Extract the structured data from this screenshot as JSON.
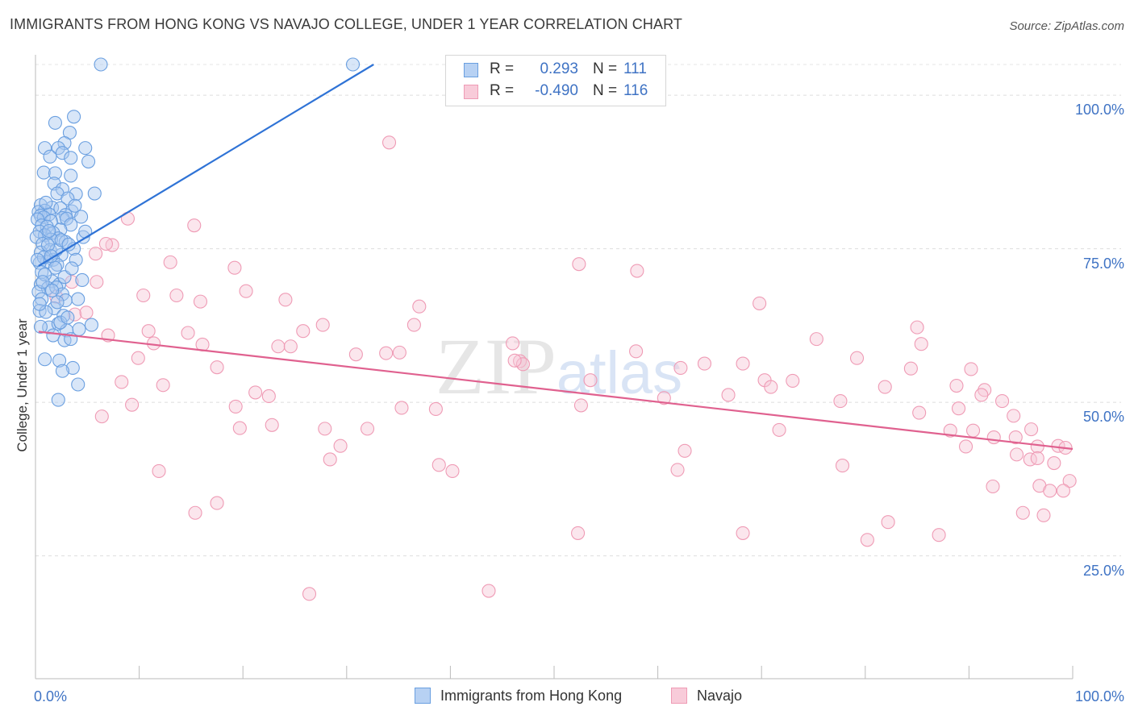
{
  "chart_data": {
    "type": "scatter",
    "title": "IMMIGRANTS FROM HONG KONG VS NAVAJO COLLEGE, UNDER 1 YEAR CORRELATION CHART",
    "source": "Source: ZipAtlas.com",
    "xlabel": "",
    "ylabel": "College, Under 1 year",
    "xlim": [
      0,
      100
    ],
    "ylim": [
      5,
      105
    ],
    "x_tick_labels": {
      "left": "0.0%",
      "right": "100.0%"
    },
    "y_ticks": [
      {
        "value": 100,
        "label": "100.0%"
      },
      {
        "value": 75,
        "label": "75.0%"
      },
      {
        "value": 50,
        "label": "50.0%"
      },
      {
        "value": 25,
        "label": "25.0%"
      }
    ],
    "grid": true,
    "watermark": "ZIPatlas",
    "stats": [
      {
        "series": "Immigrants from Hong Kong",
        "r_label": "R =",
        "r_value": "0.293",
        "n_label": "N =",
        "n_value": "111"
      },
      {
        "series": "Navajo",
        "r_label": "R =",
        "r_value": "-0.490",
        "n_label": "N =",
        "n_value": "116"
      }
    ],
    "series": [
      {
        "name": "Immigrants from Hong Kong",
        "color": "#6a9fe0",
        "fill": "#a9c8f0",
        "line_color": "#2f73d6",
        "trend": {
          "x": [
            0.3,
            32.6
          ],
          "y": [
            72.2,
            105
          ]
        },
        "points": [
          [
            6.3,
            105
          ],
          [
            30.6,
            105
          ],
          [
            3.7,
            96.5
          ],
          [
            1.9,
            95.5
          ],
          [
            3.3,
            93.9
          ],
          [
            2.8,
            92.2
          ],
          [
            0.9,
            91.4
          ],
          [
            2.2,
            91.4
          ],
          [
            4.8,
            91.4
          ],
          [
            2.6,
            90.6
          ],
          [
            1.4,
            90.0
          ],
          [
            3.4,
            89.8
          ],
          [
            5.1,
            89.2
          ],
          [
            0.8,
            87.4
          ],
          [
            1.9,
            87.3
          ],
          [
            3.4,
            86.9
          ],
          [
            1.8,
            85.6
          ],
          [
            2.6,
            84.7
          ],
          [
            2.1,
            84.0
          ],
          [
            3.9,
            83.9
          ],
          [
            5.7,
            84.0
          ],
          [
            3.1,
            83.2
          ],
          [
            0.5,
            82.1
          ],
          [
            1.6,
            81.7
          ],
          [
            2.4,
            81.6
          ],
          [
            0.9,
            81.2
          ],
          [
            3.5,
            81.1
          ],
          [
            0.3,
            81.0
          ],
          [
            1.3,
            80.6
          ],
          [
            2.9,
            80.5
          ],
          [
            0.5,
            80.4
          ],
          [
            0.8,
            80.1
          ],
          [
            4.4,
            80.2
          ],
          [
            2.6,
            80.0
          ],
          [
            3.0,
            79.9
          ],
          [
            0.2,
            79.8
          ],
          [
            1.5,
            79.5
          ],
          [
            0.6,
            78.8
          ],
          [
            3.4,
            78.9
          ],
          [
            1.1,
            78.6
          ],
          [
            2.4,
            78.1
          ],
          [
            0.4,
            77.8
          ],
          [
            1.7,
            77.6
          ],
          [
            0.9,
            77.2
          ],
          [
            0.1,
            76.9
          ],
          [
            2.2,
            76.7
          ],
          [
            4.6,
            76.9
          ],
          [
            1.5,
            76.5
          ],
          [
            2.9,
            76.1
          ],
          [
            0.7,
            75.8
          ],
          [
            3.7,
            75.0
          ],
          [
            1.4,
            74.8
          ],
          [
            0.5,
            74.4
          ],
          [
            2.5,
            74.0
          ],
          [
            1.7,
            73.2
          ],
          [
            1.1,
            72.9
          ],
          [
            3.9,
            73.2
          ],
          [
            0.4,
            72.7
          ],
          [
            2.1,
            72.4
          ],
          [
            4.5,
            69.9
          ],
          [
            1.6,
            69.7
          ],
          [
            0.5,
            69.2
          ],
          [
            2.3,
            69.2
          ],
          [
            1.2,
            68.6
          ],
          [
            2.0,
            68.7
          ],
          [
            0.3,
            68.0
          ],
          [
            2.6,
            67.6
          ],
          [
            4.1,
            66.8
          ],
          [
            0.6,
            66.8
          ],
          [
            2.9,
            66.6
          ],
          [
            1.8,
            65.3
          ],
          [
            0.4,
            64.9
          ],
          [
            2.7,
            64.1
          ],
          [
            1.3,
            62.2
          ],
          [
            2.2,
            62.8
          ],
          [
            4.2,
            61.9
          ],
          [
            3.0,
            61.7
          ],
          [
            0.5,
            62.3
          ],
          [
            1.7,
            60.9
          ],
          [
            2.8,
            60.1
          ],
          [
            3.4,
            60.3
          ],
          [
            5.4,
            62.6
          ],
          [
            0.9,
            57.0
          ],
          [
            2.3,
            56.8
          ],
          [
            3.6,
            55.6
          ],
          [
            2.6,
            55.1
          ],
          [
            4.1,
            52.9
          ],
          [
            2.2,
            50.4
          ],
          [
            1.0,
            82.5
          ],
          [
            3.8,
            82.0
          ],
          [
            2.0,
            74.8
          ],
          [
            1.2,
            75.6
          ],
          [
            0.8,
            73.6
          ],
          [
            2.8,
            70.4
          ],
          [
            0.6,
            71.2
          ],
          [
            1.9,
            71.9
          ],
          [
            3.5,
            71.8
          ],
          [
            0.9,
            70.8
          ],
          [
            1.5,
            73.8
          ],
          [
            2.5,
            76.4
          ],
          [
            0.2,
            73.2
          ],
          [
            1.3,
            77.9
          ],
          [
            3.2,
            75.7
          ],
          [
            0.7,
            69.6
          ],
          [
            2.1,
            66.3
          ],
          [
            1.0,
            64.7
          ],
          [
            2.4,
            63.0
          ],
          [
            0.4,
            66.0
          ],
          [
            1.6,
            68.2
          ],
          [
            3.1,
            63.8
          ],
          [
            4.8,
            77.8
          ]
        ]
      },
      {
        "name": "Navajo",
        "color": "#ef9bb5",
        "fill": "#f7c7d6",
        "line_color": "#e0618f",
        "trend": {
          "x": [
            0.3,
            100
          ],
          "y": [
            61.5,
            42.4
          ]
        },
        "points": [
          [
            34.1,
            92.3
          ],
          [
            8.9,
            79.9
          ],
          [
            15.3,
            78.8
          ],
          [
            7.4,
            75.6
          ],
          [
            5.8,
            74.2
          ],
          [
            13.0,
            72.8
          ],
          [
            19.2,
            71.9
          ],
          [
            52.4,
            72.5
          ],
          [
            58.0,
            71.4
          ],
          [
            5.9,
            69.6
          ],
          [
            20.3,
            68.1
          ],
          [
            10.4,
            67.4
          ],
          [
            13.6,
            67.4
          ],
          [
            15.9,
            66.4
          ],
          [
            24.1,
            66.7
          ],
          [
            37.0,
            65.6
          ],
          [
            69.8,
            66.1
          ],
          [
            3.8,
            64.3
          ],
          [
            4.9,
            64.6
          ],
          [
            7.0,
            60.9
          ],
          [
            10.9,
            61.6
          ],
          [
            14.7,
            61.3
          ],
          [
            25.8,
            61.6
          ],
          [
            27.7,
            62.6
          ],
          [
            33.8,
            58.0
          ],
          [
            36.5,
            62.6
          ],
          [
            46.0,
            59.6
          ],
          [
            57.9,
            58.3
          ],
          [
            75.3,
            60.3
          ],
          [
            85.0,
            62.2
          ],
          [
            85.4,
            59.5
          ],
          [
            11.4,
            59.6
          ],
          [
            16.1,
            59.4
          ],
          [
            23.4,
            59.1
          ],
          [
            24.6,
            59.1
          ],
          [
            30.9,
            57.8
          ],
          [
            35.1,
            58.1
          ],
          [
            46.7,
            56.7
          ],
          [
            47.0,
            56.2
          ],
          [
            62.2,
            55.6
          ],
          [
            64.5,
            56.3
          ],
          [
            66.8,
            51.2
          ],
          [
            68.2,
            56.3
          ],
          [
            79.2,
            57.2
          ],
          [
            84.4,
            55.5
          ],
          [
            90.2,
            55.4
          ],
          [
            9.9,
            57.2
          ],
          [
            17.5,
            55.7
          ],
          [
            8.3,
            53.3
          ],
          [
            12.3,
            52.8
          ],
          [
            21.2,
            51.6
          ],
          [
            22.5,
            51.0
          ],
          [
            53.5,
            53.6
          ],
          [
            70.3,
            53.6
          ],
          [
            70.9,
            52.5
          ],
          [
            73.0,
            53.5
          ],
          [
            81.9,
            52.5
          ],
          [
            88.8,
            52.7
          ],
          [
            91.5,
            52.0
          ],
          [
            91.2,
            51.2
          ],
          [
            9.3,
            49.6
          ],
          [
            19.3,
            49.3
          ],
          [
            35.3,
            49.1
          ],
          [
            38.6,
            48.9
          ],
          [
            52.6,
            49.5
          ],
          [
            60.6,
            50.7
          ],
          [
            77.6,
            50.2
          ],
          [
            85.2,
            48.3
          ],
          [
            89.0,
            49.0
          ],
          [
            93.2,
            50.2
          ],
          [
            6.4,
            47.7
          ],
          [
            19.7,
            45.8
          ],
          [
            22.8,
            46.3
          ],
          [
            27.9,
            45.7
          ],
          [
            32.0,
            45.7
          ],
          [
            46.2,
            56.8
          ],
          [
            71.7,
            45.5
          ],
          [
            94.3,
            47.8
          ],
          [
            96.0,
            45.6
          ],
          [
            88.2,
            45.4
          ],
          [
            90.4,
            45.4
          ],
          [
            92.4,
            44.3
          ],
          [
            94.5,
            44.3
          ],
          [
            98.6,
            42.9
          ],
          [
            89.7,
            42.8
          ],
          [
            96.6,
            42.8
          ],
          [
            99.3,
            42.6
          ],
          [
            62.6,
            42.1
          ],
          [
            94.6,
            41.5
          ],
          [
            95.9,
            40.7
          ],
          [
            96.6,
            40.9
          ],
          [
            98.2,
            40.1
          ],
          [
            29.4,
            42.9
          ],
          [
            28.4,
            40.7
          ],
          [
            38.9,
            39.8
          ],
          [
            40.2,
            38.8
          ],
          [
            61.9,
            39.0
          ],
          [
            77.8,
            39.7
          ],
          [
            11.9,
            38.8
          ],
          [
            99.7,
            37.2
          ],
          [
            92.3,
            36.3
          ],
          [
            96.8,
            36.4
          ],
          [
            97.8,
            35.6
          ],
          [
            99.1,
            35.6
          ],
          [
            15.4,
            32.0
          ],
          [
            17.5,
            33.6
          ],
          [
            95.2,
            32.0
          ],
          [
            97.2,
            31.6
          ],
          [
            82.2,
            30.5
          ],
          [
            52.3,
            28.7
          ],
          [
            68.2,
            28.7
          ],
          [
            80.2,
            27.6
          ],
          [
            87.1,
            28.4
          ],
          [
            26.4,
            18.8
          ],
          [
            43.7,
            19.3
          ],
          [
            2.0,
            67.2
          ],
          [
            3.5,
            69.6
          ],
          [
            6.8,
            75.8
          ]
        ]
      }
    ]
  },
  "legend": [
    {
      "label": "Immigrants from Hong Kong"
    },
    {
      "label": "Navajo"
    }
  ]
}
